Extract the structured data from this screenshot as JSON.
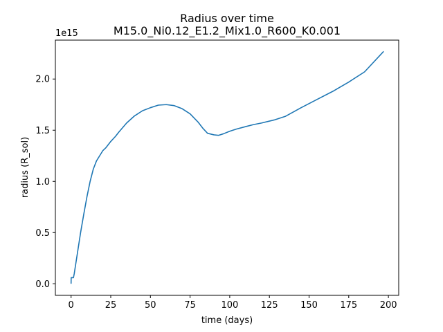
{
  "chart_data": {
    "type": "line",
    "title_line1": "Radius  over time",
    "title_line2": "M15.0_Ni0.12_E1.2_Mix1.0_R600_K0.001",
    "xlabel": "time (days)",
    "ylabel": "radius (R_sol)",
    "y_offset_label": "1e15",
    "xlim": [
      -9.9,
      206.5
    ],
    "ylim": [
      -113000000000000.0,
      2380000000000000.0
    ],
    "xticks": [
      0,
      25,
      50,
      75,
      100,
      125,
      150,
      175,
      200
    ],
    "xtick_labels": [
      "0",
      "25",
      "50",
      "75",
      "100",
      "125",
      "150",
      "175",
      "200"
    ],
    "yticks": [
      0.0,
      500000000000000.0,
      1000000000000000.0,
      1500000000000000.0,
      2000000000000000.0
    ],
    "ytick_labels": [
      "0.0",
      "0.5",
      "1.0",
      "1.5",
      "2.0"
    ],
    "grid": false,
    "series": [
      {
        "color": "#1f77b4",
        "x": [
          0,
          0.05,
          1.5,
          2,
          4,
          6,
          8,
          10,
          12,
          14,
          16,
          18,
          20,
          22,
          25,
          28,
          30,
          35,
          40,
          45,
          50,
          55,
          60,
          65,
          70,
          75,
          80,
          83,
          86,
          90,
          93,
          96,
          100,
          104,
          110,
          115,
          120,
          128,
          135,
          145,
          155,
          165,
          175,
          185,
          197
        ],
        "y": [
          0.0,
          60000000000000.0,
          60000000000000.0,
          100000000000000.0,
          300000000000000.0,
          500000000000000.0,
          680000000000000.0,
          850000000000000.0,
          1000000000000000.0,
          1120000000000000.0,
          1200000000000000.0,
          1250000000000000.0,
          1300000000000000.0,
          1330000000000000.0,
          1390000000000000.0,
          1440000000000000.0,
          1480000000000000.0,
          1570000000000000.0,
          1640000000000000.0,
          1690000000000000.0,
          1720000000000000.0,
          1745000000000000.0,
          1750000000000000.0,
          1740000000000000.0,
          1710000000000000.0,
          1660000000000000.0,
          1580000000000000.0,
          1520000000000000.0,
          1470000000000000.0,
          1455000000000000.0,
          1450000000000000.0,
          1465000000000000.0,
          1490000000000000.0,
          1510000000000000.0,
          1535000000000000.0,
          1555000000000000.0,
          1570000000000000.0,
          1600000000000000.0,
          1635000000000000.0,
          1720000000000000.0,
          1800000000000000.0,
          1880000000000000.0,
          1970000000000000.0,
          2070000000000000.0,
          2270000000000000.0
        ]
      }
    ]
  }
}
